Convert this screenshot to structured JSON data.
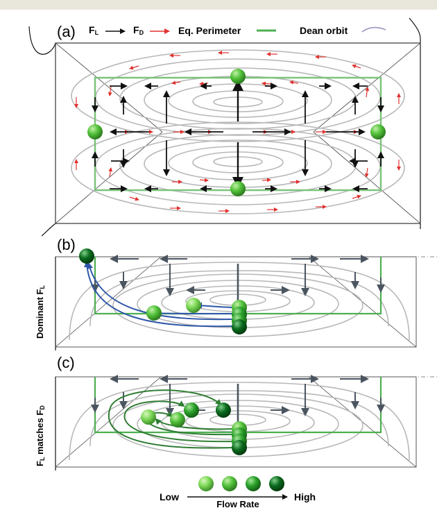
{
  "panels": {
    "a": {
      "label": "(a)"
    },
    "b": {
      "label": "(b)",
      "side_label": "Dominant F",
      "side_sub": "L"
    },
    "c": {
      "label": "(c)",
      "side_label": "F",
      "side_sub": "L",
      "side_rest": " matches F",
      "side_sub2": "D"
    }
  },
  "legend": {
    "fl_main": "F",
    "fl_sub": "L",
    "fd_main": "F",
    "fd_sub": "D",
    "eq_perimeter": "Eq. Perimeter",
    "dean_orbit": "Dean orbit"
  },
  "flow_scale": {
    "low": "Low",
    "high": "High",
    "caption": "Flow Rate"
  },
  "colors": {
    "lift_arrow": "#111111",
    "drag_arrow": "#e0322e",
    "eq_perimeter": "#4caf50",
    "dean_orbit": "#9a8fbf",
    "streamline": "#b8b8b8",
    "blue_path": "#2e57a8",
    "green_path": "#2e7d32",
    "particle_scale": [
      "#7ed957",
      "#52c23a",
      "#2aa12a",
      "#0b6b1e"
    ]
  }
}
